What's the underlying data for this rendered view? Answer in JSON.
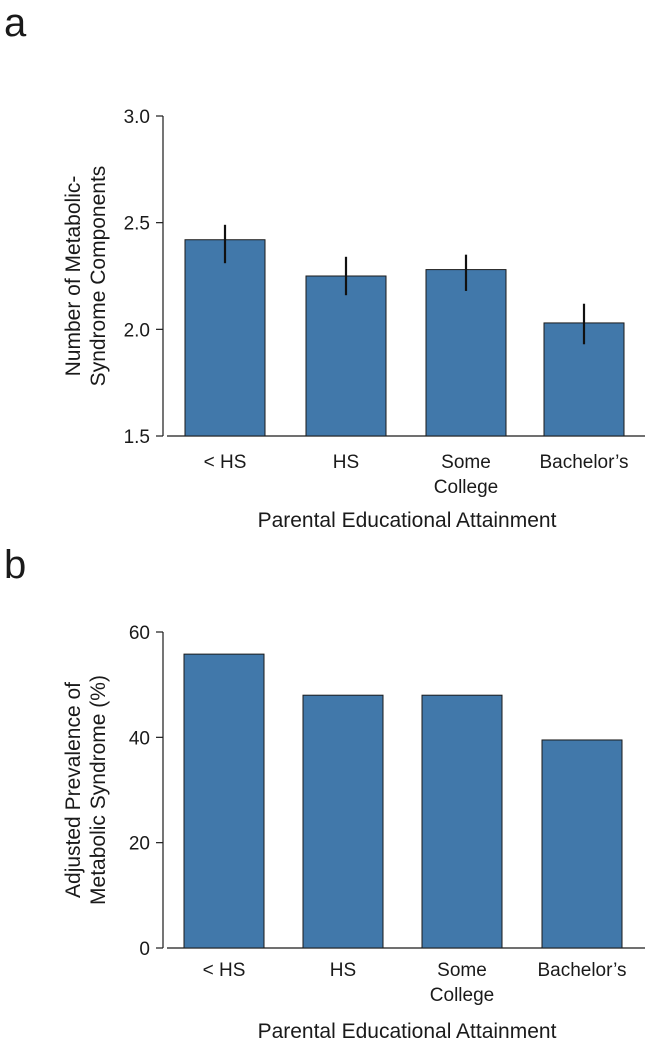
{
  "chart_data": [
    {
      "panel": "a",
      "type": "bar",
      "categories": [
        [
          "< HS"
        ],
        [
          "HS"
        ],
        [
          "Some",
          "College"
        ],
        [
          "Bachelor’s"
        ]
      ],
      "values": [
        2.42,
        2.25,
        2.28,
        2.03
      ],
      "error_low": [
        2.31,
        2.16,
        2.18,
        1.93
      ],
      "error_high": [
        2.49,
        2.34,
        2.35,
        2.12
      ],
      "ylabel": [
        "Number of Metabolic-",
        "Syndrome Components"
      ],
      "xlabel": "Parental Educational Attainment",
      "ylim": [
        1.5,
        3.0
      ],
      "yticks": [
        "1.5",
        "2.0",
        "2.5",
        "3.0"
      ],
      "color": "#4178aa"
    },
    {
      "panel": "b",
      "type": "bar",
      "categories": [
        [
          "< HS"
        ],
        [
          "HS"
        ],
        [
          "Some",
          "College"
        ],
        [
          "Bachelor’s"
        ]
      ],
      "values": [
        55.8,
        48.0,
        48.0,
        39.5
      ],
      "ylabel": [
        "Adjusted Prevalence of",
        "Metabolic Syndrome (%)"
      ],
      "xlabel": "Parental Educational Attainment",
      "ylim": [
        0,
        60
      ],
      "yticks": [
        "0",
        "20",
        "40",
        "60"
      ],
      "color": "#4178aa"
    }
  ]
}
